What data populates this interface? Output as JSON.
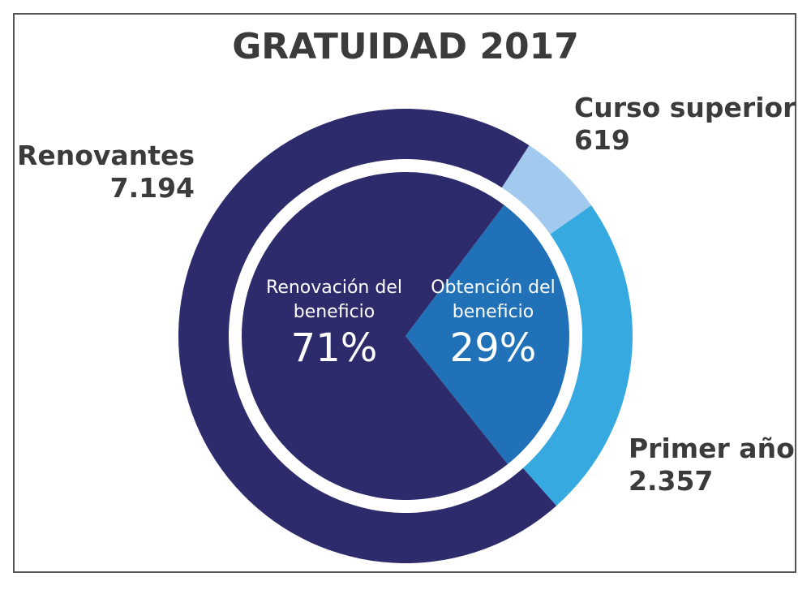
{
  "chart_data": [
    {
      "type": "donut",
      "title": "GRATUIDAD 2017",
      "categories": [
        "Curso superior",
        "Primer año",
        "Renovantes"
      ],
      "values": [
        619,
        2357,
        7194
      ],
      "value_labels": [
        "619",
        "2.357",
        "7.194"
      ],
      "colors": [
        "#a1caee",
        "#37a9e1",
        "#2d2b6b"
      ]
    },
    {
      "type": "pie",
      "categories": [
        "Obtención del beneficio",
        "Renovación del beneficio"
      ],
      "values": [
        29,
        71
      ],
      "value_labels": [
        "29%",
        "71%"
      ],
      "colors": [
        "#2171b9",
        "#2d2b6b"
      ]
    }
  ]
}
